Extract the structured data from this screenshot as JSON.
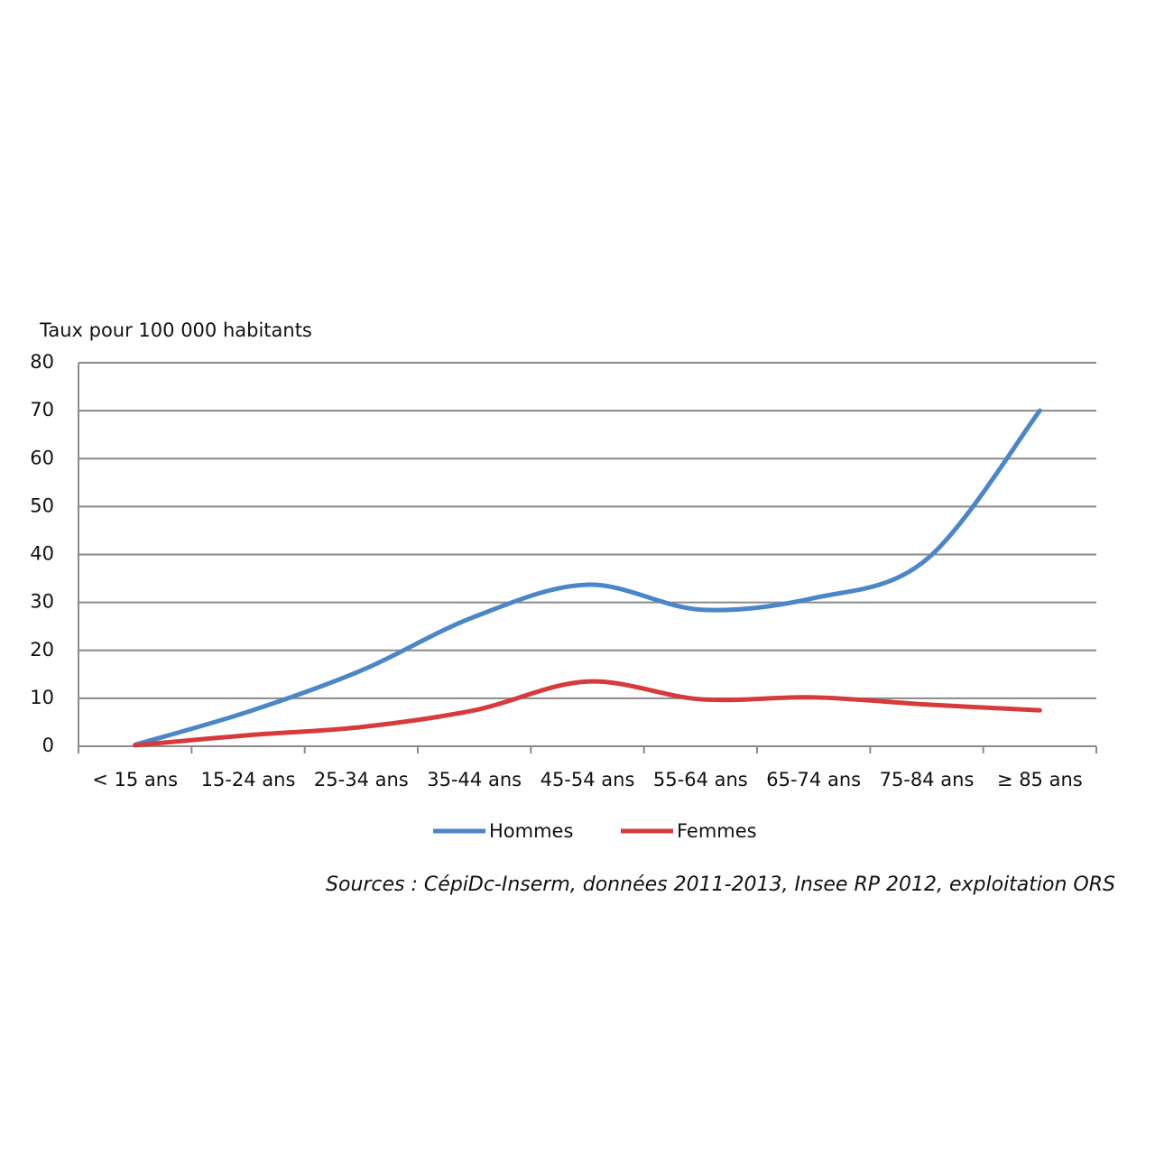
{
  "chart_data": {
    "type": "line",
    "y_label": "Taux pour 100 000 habitants",
    "source": "Sources : CépiDc-Inserm, données 2011-2013, Insee RP 2012, exploitation ORS",
    "categories": [
      "< 15 ans",
      "15-24 ans",
      "25-34 ans",
      "35-44 ans",
      "45-54 ans",
      "55-64 ans",
      "65-74 ans",
      "75-84 ans",
      "≥ 85 ans"
    ],
    "series": [
      {
        "name": "Hommes",
        "color": "#4a86c8",
        "values": [
          0.3,
          7.2,
          15.8,
          27,
          33.7,
          28.5,
          30.9,
          39,
          70
        ]
      },
      {
        "name": "Femmes",
        "color": "#d63a3a",
        "values": [
          0.2,
          2.3,
          4,
          7.5,
          13.5,
          9.8,
          10.2,
          8.7,
          7.5
        ]
      }
    ],
    "ylim": [
      0,
      80
    ],
    "yticks": [
      0,
      10,
      20,
      30,
      40,
      50,
      60,
      70,
      80
    ],
    "grid": true,
    "legend": "bottom"
  }
}
